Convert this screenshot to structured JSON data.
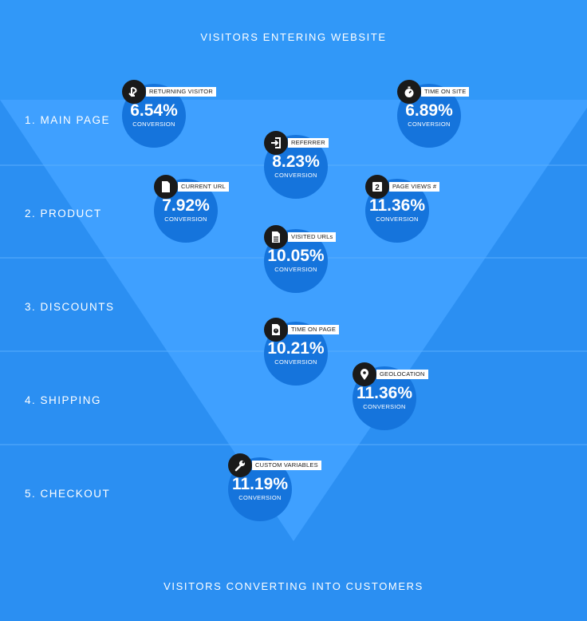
{
  "header": {
    "title": "VISITORS ENTERING WEBSITE"
  },
  "footer": {
    "title": "VISITORS CONVERTING INTO CUSTOMERS"
  },
  "stages": [
    {
      "label": "1. MAIN PAGE"
    },
    {
      "label": "2. PRODUCT"
    },
    {
      "label": "3. DISCOUNTS"
    },
    {
      "label": "4. SHIPPING"
    },
    {
      "label": "5. CHECKOUT"
    }
  ],
  "metrics": [
    {
      "tag": "RETURNING VISITOR",
      "value": "6.54%",
      "sub": "CONVERSION",
      "icon": "returning-visitor-icon"
    },
    {
      "tag": "TIME ON SITE",
      "value": "6.89%",
      "sub": "CONVERSION",
      "icon": "stopwatch-icon"
    },
    {
      "tag": "REFERRER",
      "value": "8.23%",
      "sub": "CONVERSION",
      "icon": "referrer-icon"
    },
    {
      "tag": "CURRENT URL",
      "value": "7.92%",
      "sub": "CONVERSION",
      "icon": "document-icon"
    },
    {
      "tag": "PAGE VIEWS #",
      "value": "11.36%",
      "sub": "CONVERSION",
      "icon": "page-views-icon",
      "icon_text": "2"
    },
    {
      "tag": "VISITED URLs",
      "value": "10.05%",
      "sub": "CONVERSION",
      "icon": "visited-urls-icon"
    },
    {
      "tag": "TIME ON PAGE",
      "value": "10.21%",
      "sub": "CONVERSION",
      "icon": "time-on-page-icon"
    },
    {
      "tag": "GEOLOCATION",
      "value": "11.36%",
      "sub": "CONVERSION",
      "icon": "location-pin-icon"
    },
    {
      "tag": "CUSTOM VARIABLES",
      "value": "11.19%",
      "sub": "CONVERSION",
      "icon": "wrench-icon"
    }
  ],
  "colors": {
    "background": "#2b8ff2",
    "funnel": "#3fa0ff",
    "bubble": "#1574dc",
    "icon": "#1a1a1a"
  }
}
